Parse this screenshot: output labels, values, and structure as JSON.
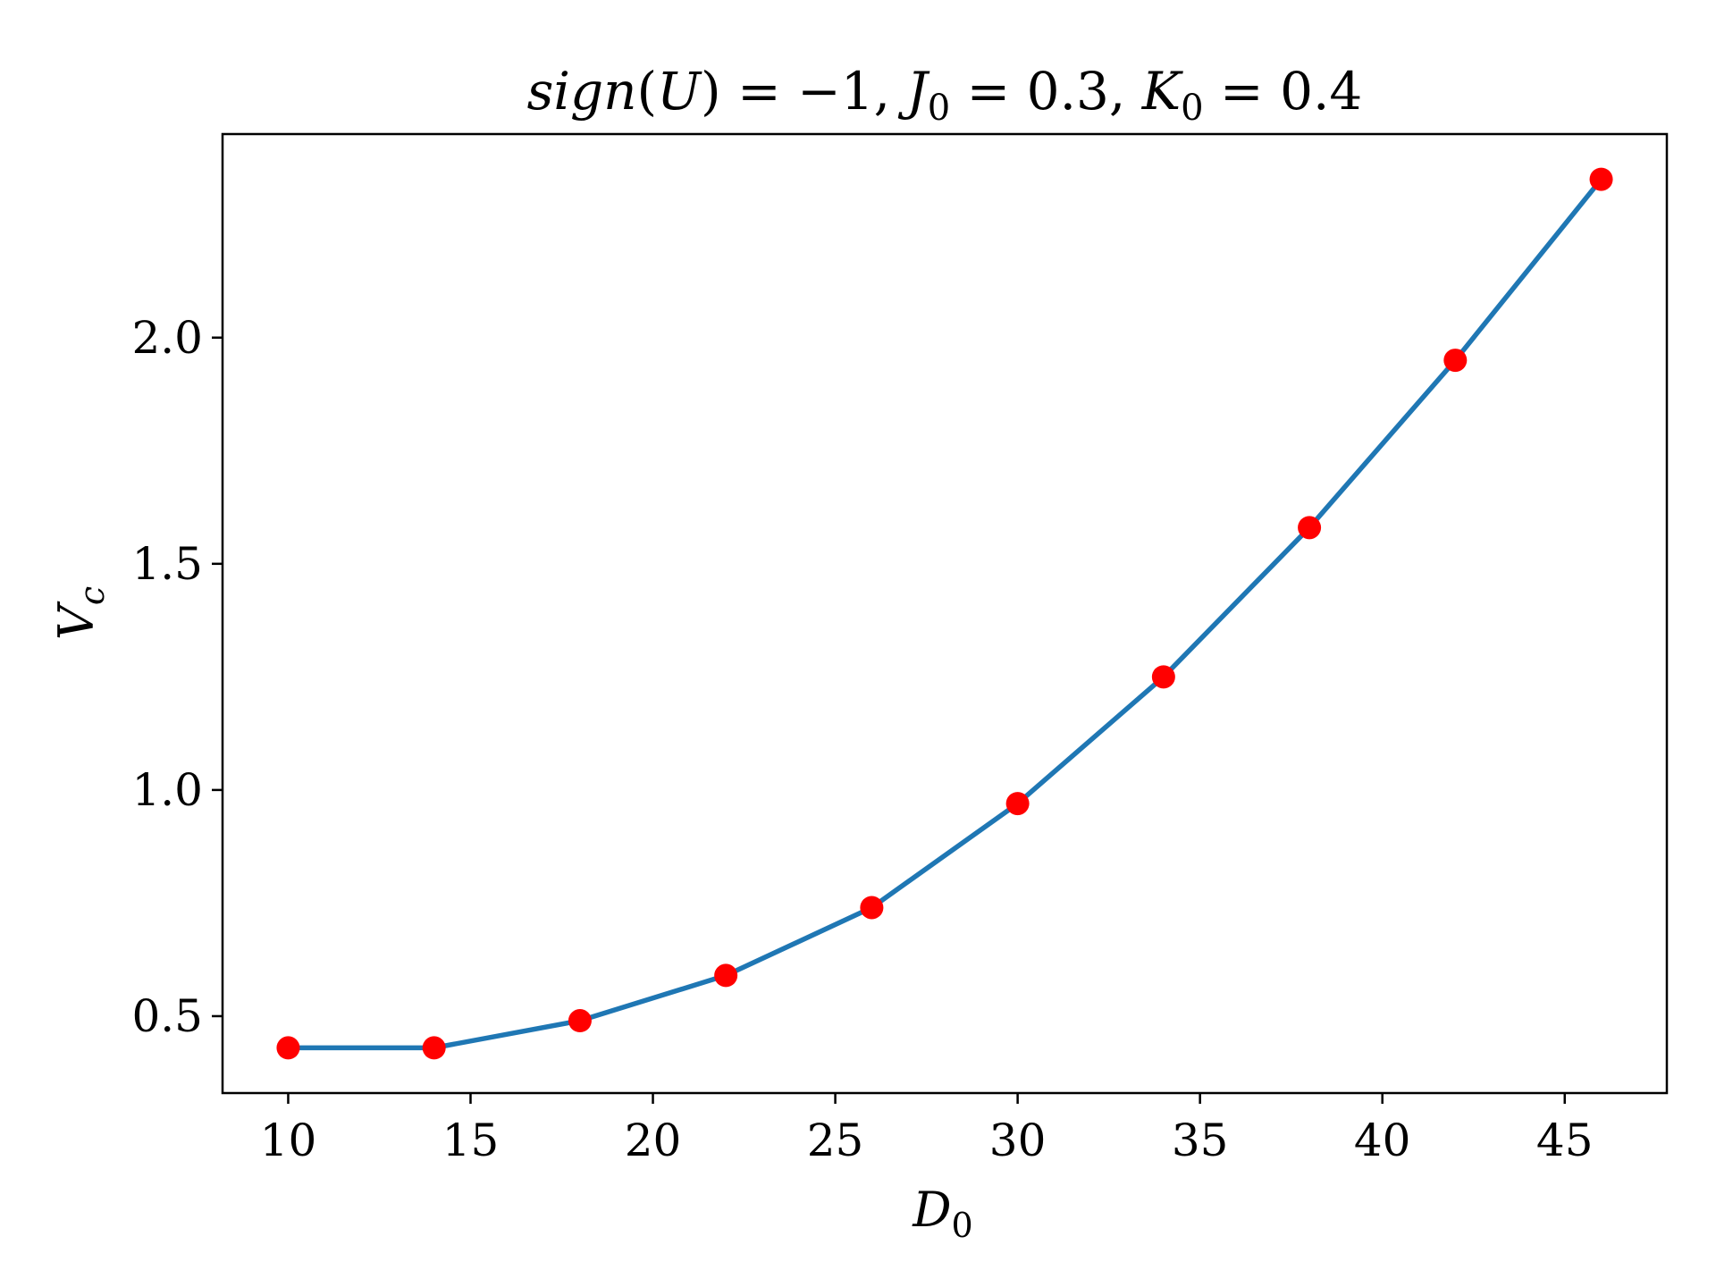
{
  "chart_data": {
    "type": "line",
    "title": {
      "parts": [
        {
          "t": "sign",
          "i": true
        },
        {
          "t": "(",
          "i": false
        },
        {
          "t": "U",
          "i": true
        },
        {
          "t": ") = −1, ",
          "i": false
        },
        {
          "t": "J",
          "i": true
        },
        {
          "t": "0",
          "i": false,
          "sub": true
        },
        {
          "t": " = 0.3, ",
          "i": false
        },
        {
          "t": "K",
          "i": true
        },
        {
          "t": "0",
          "i": false,
          "sub": true
        },
        {
          "t": " = 0.4",
          "i": false
        }
      ]
    },
    "xlabel": {
      "main": "D",
      "sub": "0"
    },
    "ylabel": {
      "main": "V",
      "sub": "c"
    },
    "xlim": [
      8.2,
      47.8
    ],
    "ylim": [
      0.33,
      2.45
    ],
    "xticks": [
      10,
      15,
      20,
      25,
      30,
      35,
      40,
      45
    ],
    "xtick_labels": [
      "10",
      "15",
      "20",
      "25",
      "30",
      "35",
      "40",
      "45"
    ],
    "yticks": [
      0.5,
      1.0,
      1.5,
      2.0
    ],
    "ytick_labels": [
      "0.5",
      "1.0",
      "1.5",
      "2.0"
    ],
    "grid": false,
    "legend": "none",
    "series": [
      {
        "style": "line",
        "color": "#1f77b4",
        "x": [
          10,
          14,
          18,
          22,
          26,
          30,
          34,
          38,
          42,
          46
        ],
        "y": [
          0.43,
          0.43,
          0.49,
          0.59,
          0.74,
          0.97,
          1.25,
          1.58,
          1.95,
          2.35
        ]
      },
      {
        "style": "scatter",
        "color": "#ff0000",
        "x": [
          10,
          14,
          18,
          22,
          26,
          30,
          34,
          38,
          42,
          46
        ],
        "y": [
          0.43,
          0.43,
          0.49,
          0.59,
          0.74,
          0.97,
          1.25,
          1.58,
          1.95,
          2.35
        ]
      }
    ]
  }
}
